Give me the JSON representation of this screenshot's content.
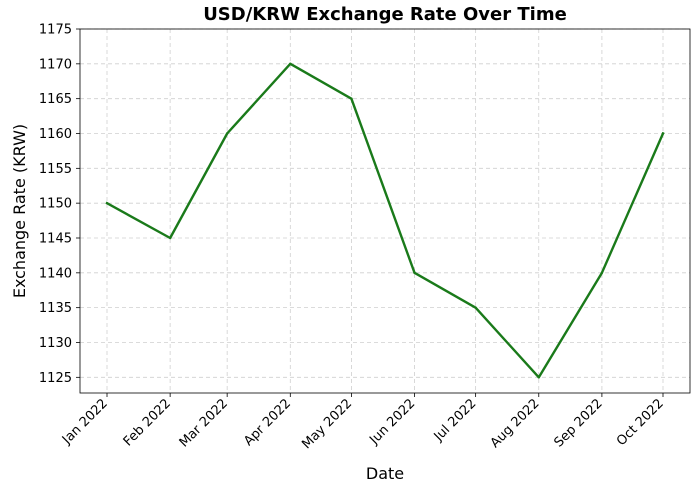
{
  "chart_data": {
    "type": "line",
    "title": "USD/KRW Exchange Rate Over Time",
    "xlabel": "Date",
    "ylabel": "Exchange Rate (KRW)",
    "categories": [
      "Jan 2022",
      "Feb 2022",
      "Mar 2022",
      "Apr 2022",
      "May 2022",
      "Jun 2022",
      "Jul 2022",
      "Aug 2022",
      "Sep 2022",
      "Oct 2022"
    ],
    "x": [
      "2022-01-01",
      "2022-02-01",
      "2022-03-01",
      "2022-04-01",
      "2022-05-01",
      "2022-06-01",
      "2022-07-01",
      "2022-08-01",
      "2022-09-01",
      "2022-10-01"
    ],
    "series": [
      {
        "values": [
          1150,
          1145,
          1160,
          1170,
          1165,
          1140,
          1135,
          1125,
          1140,
          1160
        ],
        "color": "#1a7a1a"
      }
    ],
    "ylim": [
      1122.75,
      1175
    ],
    "yticks": [
      1125,
      1130,
      1135,
      1140,
      1145,
      1150,
      1155,
      1160,
      1165,
      1170,
      1175
    ],
    "grid": true,
    "legend": "none"
  }
}
